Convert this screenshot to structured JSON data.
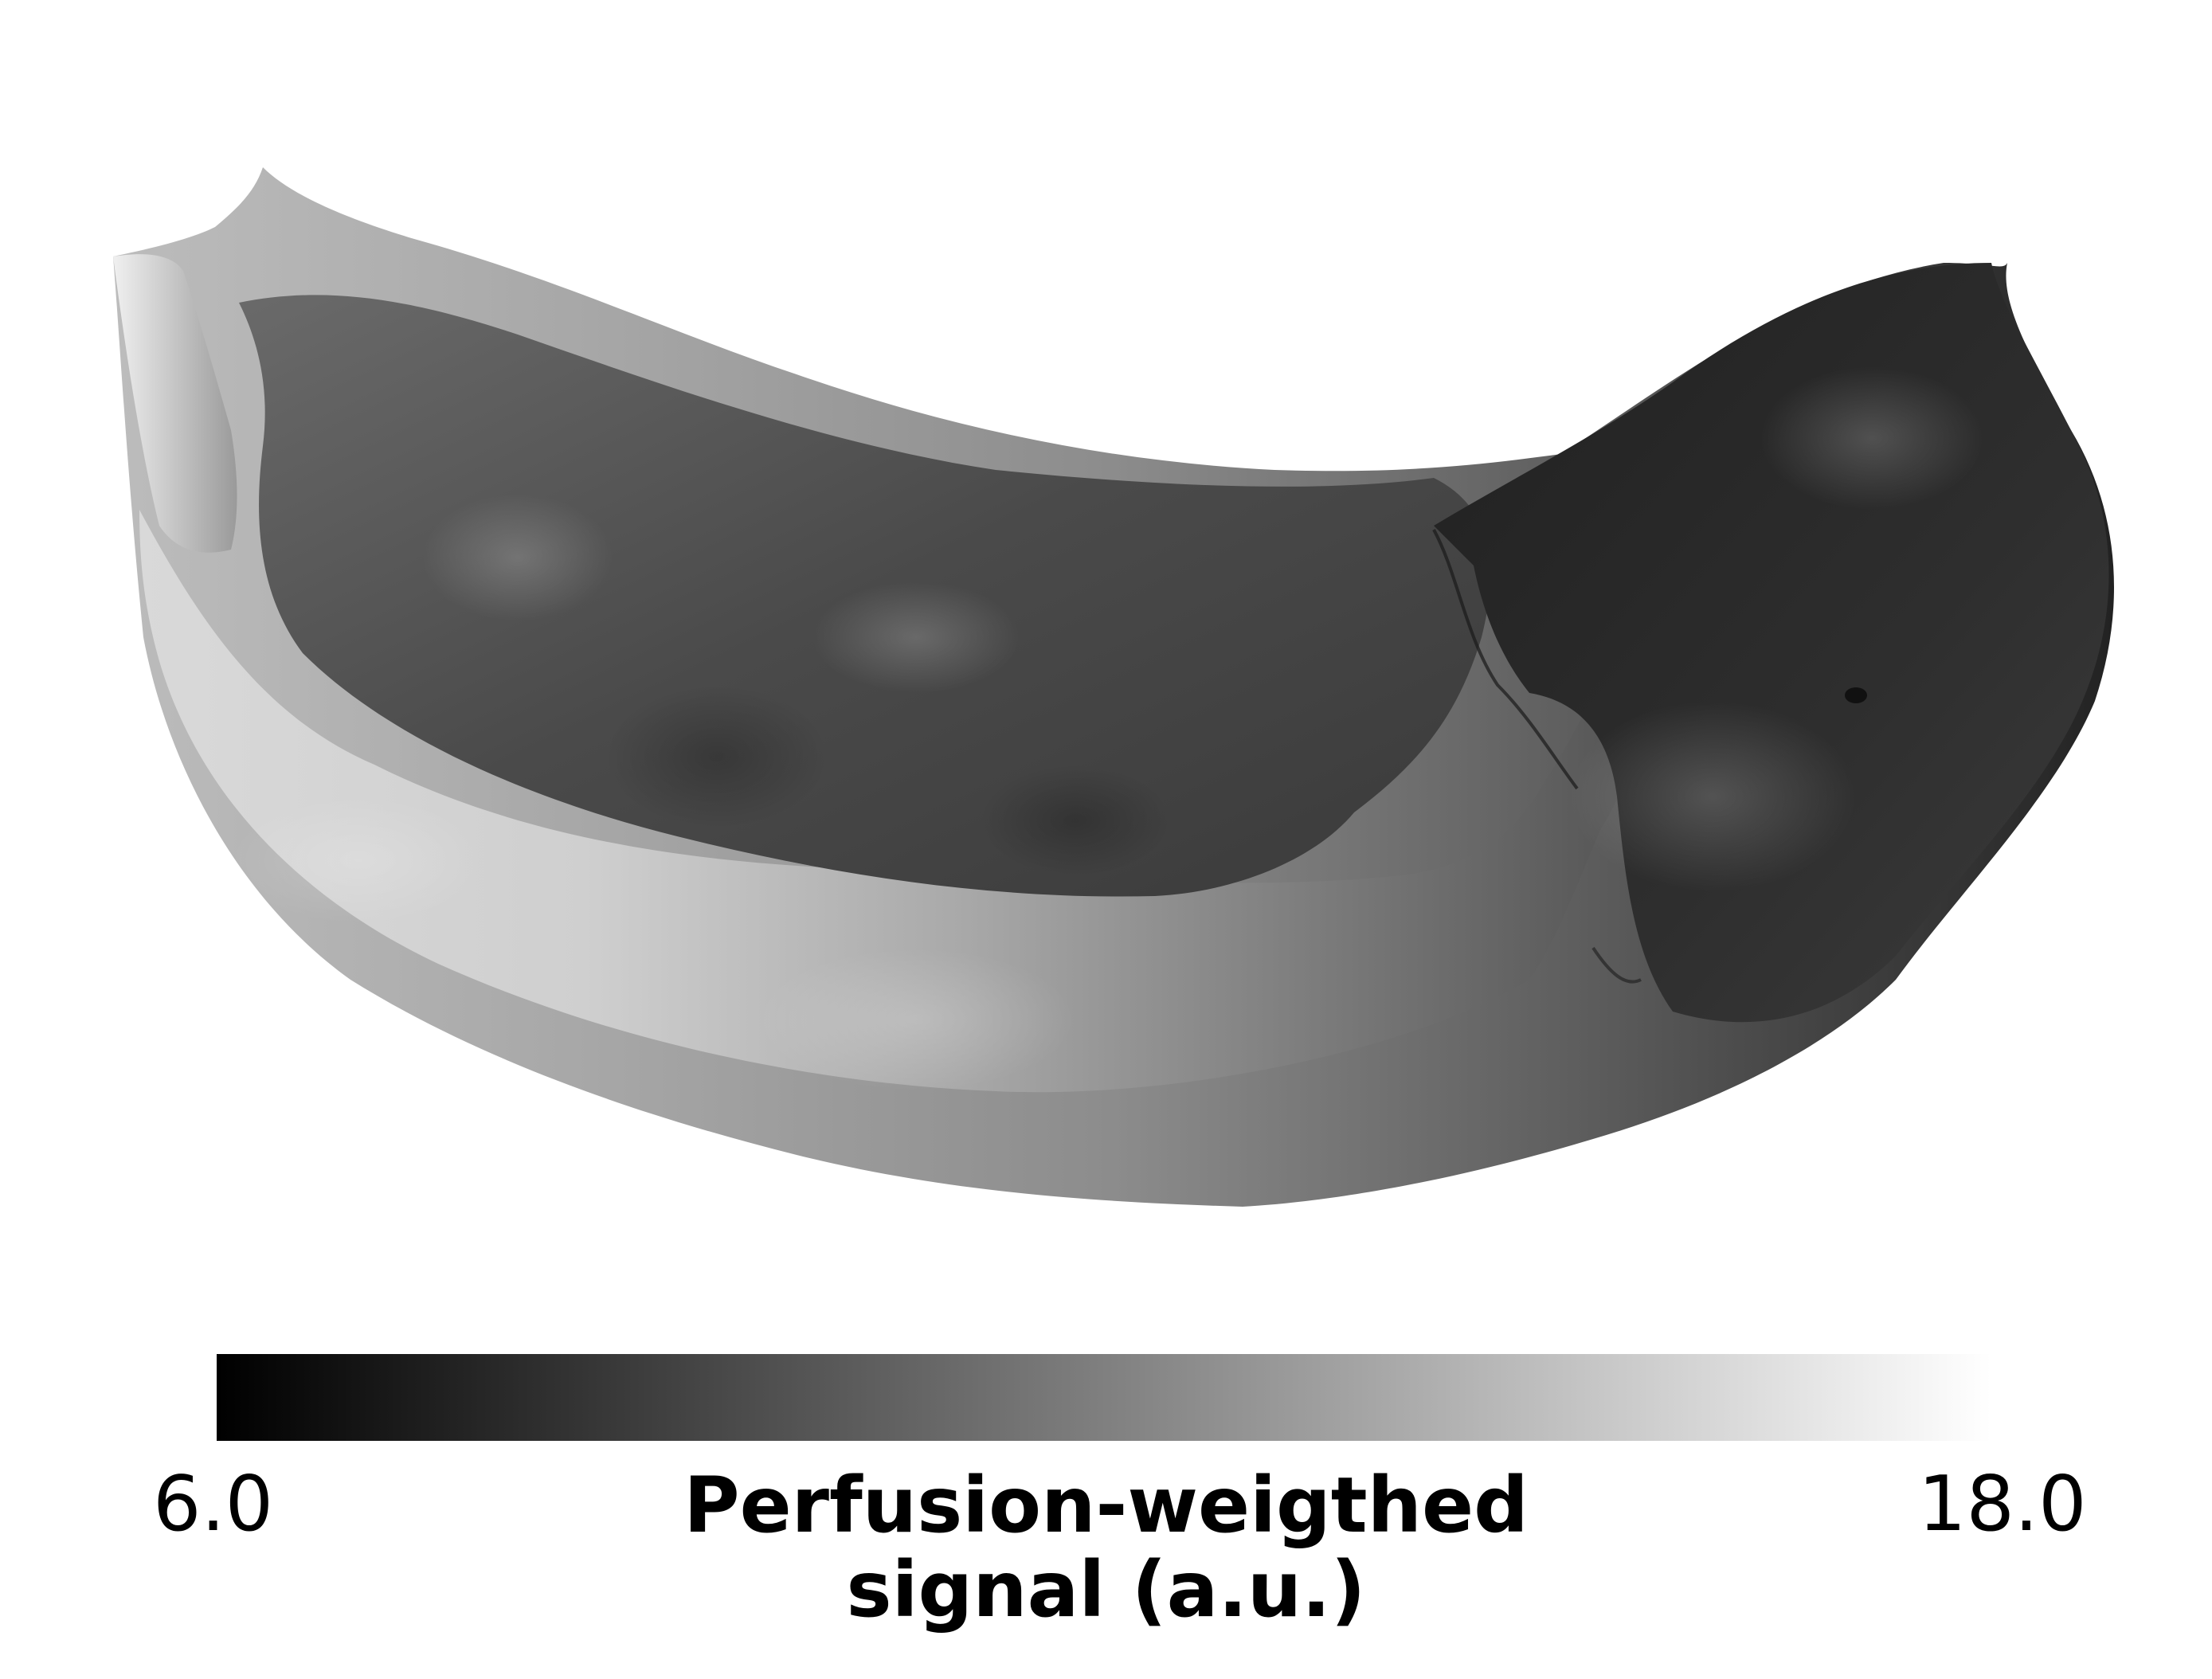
{
  "figure": {
    "type": "surface-rendering",
    "subject": "grayscale 3D cortical surface map",
    "background_color": "#ffffff"
  },
  "colorbar": {
    "min_label": "6.0",
    "max_label": "18.0",
    "min_value": 6.0,
    "max_value": 18.0,
    "title_line1": "Perfusion-weigthed",
    "title_line2": "signal (a.u.)",
    "colormap": "gray",
    "min_color": "#000000",
    "max_color": "#ffffff"
  }
}
